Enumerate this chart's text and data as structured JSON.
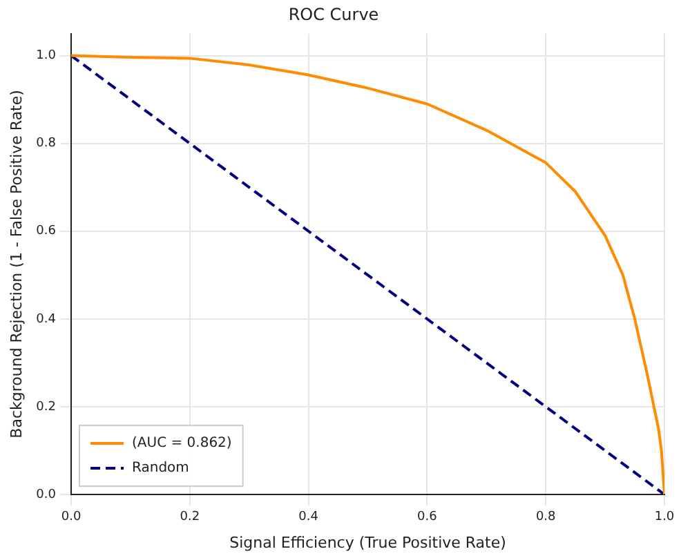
{
  "chart_data": {
    "type": "line",
    "title": "ROC Curve",
    "xlabel": "Signal Efficiency (True Positive Rate)",
    "ylabel": "Background Rejection (1 - False Positive Rate)",
    "series": [
      {
        "name": "(AUC = 0.862)",
        "color": "#ff8c00",
        "line_style": "solid",
        "x": [
          0,
          0.1,
          0.2,
          0.3,
          0.4,
          0.5,
          0.6,
          0.7,
          0.8,
          0.85,
          0.9,
          0.93,
          0.95,
          0.97,
          0.99,
          0.995,
          1
        ],
        "values": [
          1,
          0.996,
          0.994,
          0.979,
          0.956,
          0.926,
          0.89,
          0.83,
          0.756,
          0.69,
          0.59,
          0.5,
          0.4,
          0.28,
          0.15,
          0.1,
          0
        ]
      },
      {
        "name": "Random",
        "color": "#000080",
        "line_style": "dashed",
        "x": [
          0,
          1
        ],
        "values": [
          1,
          0
        ]
      }
    ],
    "xlim": [
      0,
      1
    ],
    "ylim": [
      0,
      1.05
    ],
    "xticks": [
      {
        "value": 0,
        "label": "0.0"
      },
      {
        "value": 0.2,
        "label": "0.2"
      },
      {
        "value": 0.4,
        "label": "0.4"
      },
      {
        "value": 0.6,
        "label": "0.6"
      },
      {
        "value": 0.8,
        "label": "0.8"
      },
      {
        "value": 1,
        "label": "1.0"
      }
    ],
    "yticks": [
      {
        "value": 0,
        "label": "0.0"
      },
      {
        "value": 0.2,
        "label": "0.2"
      },
      {
        "value": 0.4,
        "label": "0.4"
      },
      {
        "value": 0.6,
        "label": "0.6"
      },
      {
        "value": 0.8,
        "label": "0.8"
      },
      {
        "value": 1,
        "label": "1.0"
      }
    ],
    "grid": true,
    "legend": "bottom left",
    "marker": "none"
  }
}
